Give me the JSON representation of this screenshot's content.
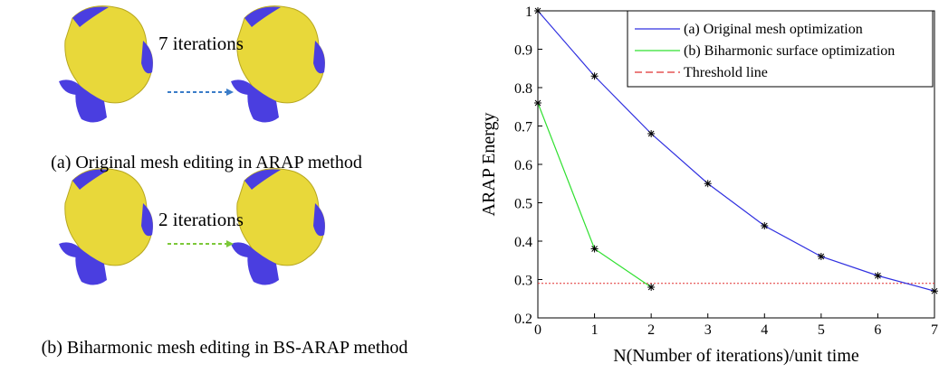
{
  "figure": {
    "row_a": {
      "arrow_label": "7 iterations",
      "caption": "(a) Original mesh editing in ARAP method"
    },
    "row_b": {
      "arrow_label": "2 iterations",
      "caption": "(b) Biharmonic mesh editing in BS-ARAP method"
    }
  },
  "chart_data": {
    "type": "line",
    "x_label": "N(Number of iterations)/unit time",
    "y_label": "ARAP Energy",
    "x": [
      0,
      1,
      2,
      3,
      4,
      5,
      6,
      7
    ],
    "series": [
      {
        "name": "(a) Original mesh optimization",
        "color": "#3030e0",
        "values": [
          1,
          0.83,
          0.68,
          0.55,
          0.44,
          0.36,
          0.31,
          0.27
        ]
      },
      {
        "name": "(b) Biharmonic surface optimization",
        "color": "#30e030",
        "values": [
          0.76,
          0.38,
          0.28,
          null,
          null,
          null,
          null,
          null
        ]
      }
    ],
    "threshold": {
      "name": "Threshold line",
      "value": 0.29,
      "color": "#e03030"
    },
    "xlim": [
      0,
      7
    ],
    "xticks": [
      0,
      1,
      2,
      3,
      4,
      5,
      6,
      7
    ],
    "ylim": [
      0.2,
      1
    ],
    "yticks": [
      0.2,
      0.3,
      0.4,
      0.5,
      0.6,
      0.7,
      0.8,
      0.9,
      1
    ],
    "legend": "top-right"
  }
}
